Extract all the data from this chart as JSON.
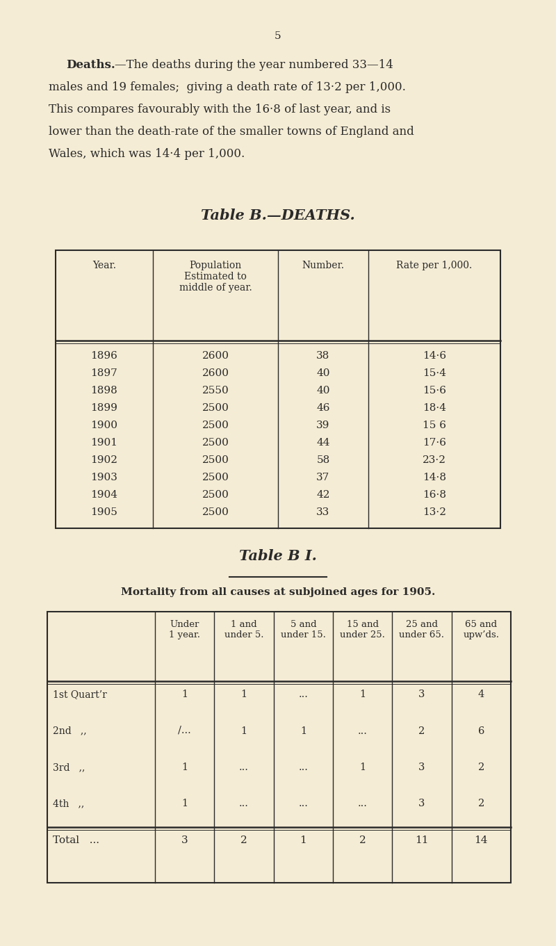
{
  "background_color": "#f5ecd5",
  "page_number": "5",
  "text_color": "#2a2a2a",
  "line_color": "#2a2a2a",
  "table_b_title": "Table B.—DEATHS.",
  "table_b_headers": [
    "Year.",
    "Population\nEstimated to\nmiddle of year.",
    "Number.",
    "Rate per 1,000."
  ],
  "table_b_rows": [
    [
      "1896",
      "2600",
      "38",
      "14·6"
    ],
    [
      "1897",
      "2600",
      "40",
      "15·4"
    ],
    [
      "1898",
      "2550",
      "40",
      "15·6"
    ],
    [
      "1899",
      "2500",
      "46",
      "18·4"
    ],
    [
      "1900",
      "2500",
      "39",
      "15 6"
    ],
    [
      "1901",
      "2500",
      "44",
      "17·6"
    ],
    [
      "1902",
      "2500",
      "58",
      "23·2"
    ],
    [
      "1903",
      "2500",
      "37",
      "14·8"
    ],
    [
      "1904",
      "2500",
      "42",
      "16·8"
    ],
    [
      "1905",
      "2500",
      "33",
      "13·2"
    ]
  ],
  "table_b1_title": "Table B I.",
  "table_b1_subtitle": "Mortality from all causes at subjoined ages for 1905.",
  "table_b1_headers": [
    "",
    "Under\n1 year.",
    "1 and\nunder 5.",
    "5 and\nunder 15.",
    "15 and\nunder 25.",
    "25 and\nunder 65.",
    "65 and\nupw’ds."
  ],
  "table_b1_rows": [
    [
      "1st Quart’r",
      "1",
      "1",
      "...",
      "1",
      "3",
      "4"
    ],
    [
      "2nd   ,,",
      "∕...",
      "1",
      "1",
      "...",
      "2",
      "6"
    ],
    [
      "3rd   ,,",
      "1",
      "...",
      "...",
      "1",
      "3",
      "2"
    ],
    [
      "4th   ,,",
      "1",
      "...",
      "...",
      "...",
      "3",
      "2"
    ]
  ],
  "table_b1_total": [
    "Total   ...",
    "3",
    "2",
    "1",
    "2",
    "11",
    "14"
  ]
}
